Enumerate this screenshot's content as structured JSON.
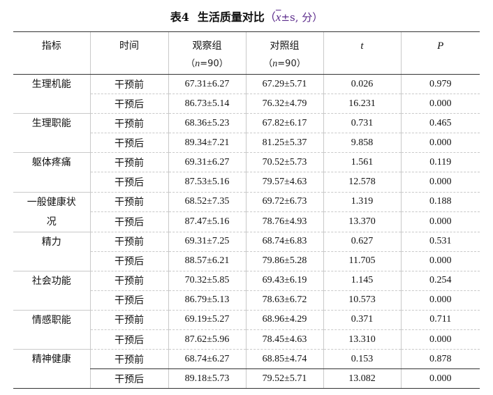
{
  "title": {
    "label": "表4",
    "text": "生活质量对比",
    "paren_open": "（",
    "xbar": "x",
    "stat": "±s, 分）"
  },
  "headers": {
    "indicator": "指标",
    "time": "时间",
    "observation": "观察组",
    "observation_n": "n",
    "observation_n_value": "=90）",
    "control": "对照组",
    "control_n": "n",
    "control_n_value": "=90）",
    "n_open": "（",
    "t": "t",
    "p": "P"
  },
  "rows": [
    {
      "indicator": "生理机能",
      "before": {
        "time": "干预前",
        "obs": "67.31±6.27",
        "ctl": "67.29±5.71",
        "t": "0.026",
        "p": "0.979"
      },
      "after": {
        "time": "干预后",
        "obs": "86.73±5.14",
        "ctl": "76.32±4.79",
        "t": "16.231",
        "p": "0.000"
      }
    },
    {
      "indicator": "生理职能",
      "before": {
        "time": "干预前",
        "obs": "68.36±5.23",
        "ctl": "67.82±6.17",
        "t": "0.731",
        "p": "0.465"
      },
      "after": {
        "time": "干预后",
        "obs": "89.34±7.21",
        "ctl": "81.25±5.37",
        "t": "9.858",
        "p": "0.000"
      }
    },
    {
      "indicator": "躯体疼痛",
      "before": {
        "time": "干预前",
        "obs": "69.31±6.27",
        "ctl": "70.52±5.73",
        "t": "1.561",
        "p": "0.119"
      },
      "after": {
        "time": "干预后",
        "obs": "87.53±5.16",
        "ctl": "79.57±4.63",
        "t": "12.578",
        "p": "0.000"
      }
    },
    {
      "indicator": "一般健康状况",
      "indicator_line1": "一般健康状",
      "indicator_line2": "况",
      "before": {
        "time": "干预前",
        "obs": "68.52±7.35",
        "ctl": "69.72±6.73",
        "t": "1.319",
        "p": "0.188"
      },
      "after": {
        "time": "干预后",
        "obs": "87.47±5.16",
        "ctl": "78.76±4.93",
        "t": "13.370",
        "p": "0.000"
      }
    },
    {
      "indicator": "精力",
      "before": {
        "time": "干预前",
        "obs": "69.31±7.25",
        "ctl": "68.74±6.83",
        "t": "0.627",
        "p": "0.531"
      },
      "after": {
        "time": "干预后",
        "obs": "88.57±6.21",
        "ctl": "79.86±5.28",
        "t": "11.705",
        "p": "0.000"
      }
    },
    {
      "indicator": "社会功能",
      "before": {
        "time": "干预前",
        "obs": "70.32±5.85",
        "ctl": "69.43±6.19",
        "t": "1.145",
        "p": "0.254"
      },
      "after": {
        "time": "干预后",
        "obs": "86.79±5.13",
        "ctl": "78.63±6.72",
        "t": "10.573",
        "p": "0.000"
      }
    },
    {
      "indicator": "情感职能",
      "before": {
        "time": "干预前",
        "obs": "69.19±5.27",
        "ctl": "68.96±4.29",
        "t": "0.371",
        "p": "0.711"
      },
      "after": {
        "time": "干预后",
        "obs": "87.62±5.96",
        "ctl": "78.45±4.63",
        "t": "13.310",
        "p": "0.000"
      }
    },
    {
      "indicator": "精神健康",
      "before": {
        "time": "干预前",
        "obs": "68.74±6.27",
        "ctl": "68.85±4.74",
        "t": "0.153",
        "p": "0.878"
      },
      "after": {
        "time": "干预后",
        "obs": "89.18±5.73",
        "ctl": "79.52±5.71",
        "t": "13.082",
        "p": "0.000"
      }
    }
  ]
}
